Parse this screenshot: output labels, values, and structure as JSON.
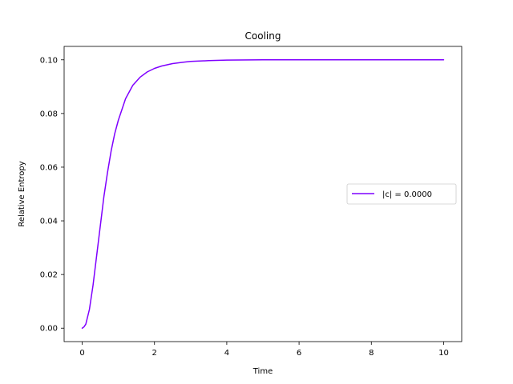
{
  "chart_data": {
    "type": "line",
    "title": "Cooling",
    "xlabel": "Time",
    "ylabel": "Relative Entropy",
    "xlim": [
      -0.5,
      10.5
    ],
    "ylim": [
      -0.005,
      0.105
    ],
    "xticks": [
      0,
      2,
      4,
      6,
      8,
      10
    ],
    "xtick_labels": [
      "0",
      "2",
      "4",
      "6",
      "8",
      "10"
    ],
    "yticks": [
      0.0,
      0.02,
      0.04,
      0.06,
      0.08,
      0.1
    ],
    "ytick_labels": [
      "0.00",
      "0.02",
      "0.04",
      "0.06",
      "0.08",
      "0.10"
    ],
    "grid": false,
    "legend_position": "center-right",
    "series": [
      {
        "name": "|c| = 0.0000",
        "color": "#7f00ff",
        "x": [
          0,
          0.05,
          0.1,
          0.2,
          0.3,
          0.4,
          0.5,
          0.6,
          0.7,
          0.8,
          0.9,
          1.0,
          1.2,
          1.4,
          1.6,
          1.8,
          2.0,
          2.2,
          2.5,
          2.8,
          3.0,
          3.5,
          4.0,
          5.0,
          6.0,
          8.0,
          10.0
        ],
        "values": [
          0.0,
          0.0005,
          0.0015,
          0.007,
          0.016,
          0.027,
          0.038,
          0.049,
          0.058,
          0.066,
          0.0725,
          0.0775,
          0.0855,
          0.0905,
          0.0935,
          0.0955,
          0.0968,
          0.0977,
          0.0986,
          0.0991,
          0.0994,
          0.0997,
          0.0999,
          0.1,
          0.1,
          0.1,
          0.1
        ]
      }
    ]
  }
}
